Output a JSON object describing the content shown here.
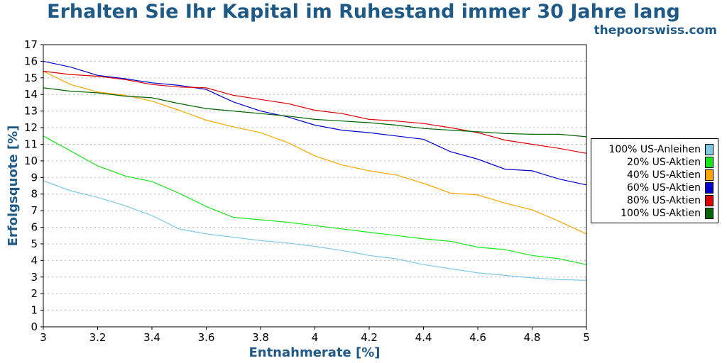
{
  "title": "Erhalten Sie Ihr Kapital im Ruhestand immer 30 Jahre lang",
  "site": "thepoorswiss.com",
  "chart_data": {
    "type": "line",
    "xlabel": "Entnahmerate [%]",
    "ylabel": "Erfolgsquote [%]",
    "xlim": [
      3,
      5
    ],
    "ylim": [
      0,
      17
    ],
    "xticks": [
      "3",
      "3.2",
      "3.4",
      "3.6",
      "3.8",
      "4",
      "4.2",
      "4.4",
      "4.6",
      "4.8",
      "5"
    ],
    "yticks": [
      "0",
      "1",
      "2",
      "3",
      "4",
      "5",
      "6",
      "7",
      "8",
      "9",
      "10",
      "11",
      "12",
      "13",
      "14",
      "15",
      "16",
      "17"
    ],
    "grid": "horizontal dotted",
    "legend_position": "right",
    "x": [
      3.0,
      3.1,
      3.2,
      3.3,
      3.4,
      3.5,
      3.6,
      3.7,
      3.8,
      3.9,
      4.0,
      4.1,
      4.2,
      4.3,
      4.4,
      4.5,
      4.6,
      4.7,
      4.8,
      4.9,
      5.0
    ],
    "series": [
      {
        "name": "100% US-Anleihen",
        "color": "#7ec8e3",
        "values": [
          8.8,
          8.2,
          7.8,
          7.3,
          6.7,
          5.9,
          5.6,
          5.4,
          5.2,
          5.05,
          4.85,
          4.6,
          4.3,
          4.1,
          3.75,
          3.5,
          3.25,
          3.1,
          2.95,
          2.85,
          2.8
        ]
      },
      {
        "name": "20% US-Aktien",
        "color": "#19e619",
        "values": [
          11.5,
          10.6,
          9.7,
          9.1,
          8.75,
          8.05,
          7.25,
          6.6,
          6.45,
          6.3,
          6.1,
          5.9,
          5.7,
          5.5,
          5.3,
          5.15,
          4.8,
          4.65,
          4.3,
          4.1,
          3.75
        ]
      },
      {
        "name": "40% US-Aktien",
        "color": "#ffa500",
        "values": [
          15.4,
          14.6,
          14.15,
          13.95,
          13.6,
          13.05,
          12.45,
          12.05,
          11.7,
          11.1,
          10.3,
          9.75,
          9.4,
          9.15,
          8.65,
          8.05,
          7.95,
          7.45,
          7.05,
          6.35,
          5.6
        ]
      },
      {
        "name": "60% US-Aktien",
        "color": "#0000cc",
        "values": [
          16.0,
          15.65,
          15.15,
          14.95,
          14.7,
          14.55,
          14.3,
          13.55,
          13.0,
          12.65,
          12.15,
          11.85,
          11.7,
          11.5,
          11.3,
          10.55,
          10.1,
          9.5,
          9.4,
          8.9,
          8.55
        ]
      },
      {
        "name": "80% US-Aktien",
        "color": "#dd0000",
        "values": [
          15.4,
          15.2,
          15.1,
          14.9,
          14.6,
          14.45,
          14.4,
          13.95,
          13.7,
          13.45,
          13.05,
          12.85,
          12.5,
          12.4,
          12.25,
          12.0,
          11.7,
          11.25,
          11.0,
          10.75,
          10.45
        ]
      },
      {
        "name": "100% US-Aktien",
        "color": "#006400",
        "values": [
          14.4,
          14.2,
          14.1,
          13.9,
          13.8,
          13.45,
          13.15,
          13.0,
          12.85,
          12.7,
          12.5,
          12.4,
          12.3,
          12.15,
          11.95,
          11.85,
          11.75,
          11.65,
          11.6,
          11.6,
          11.45
        ]
      }
    ]
  }
}
